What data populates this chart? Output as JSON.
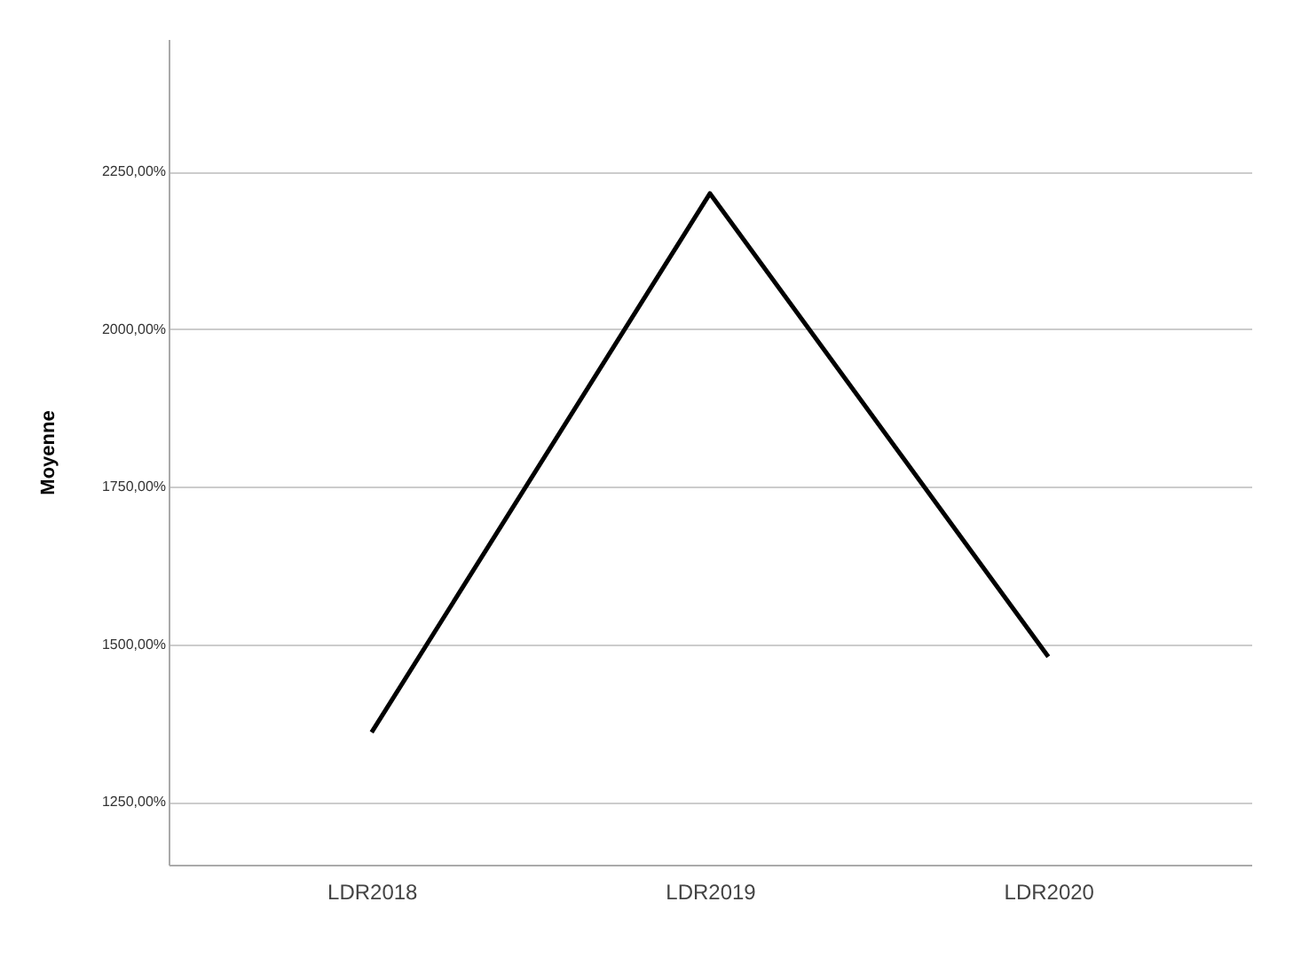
{
  "chart_data": {
    "type": "line",
    "ylabel": "Moyenne",
    "categories": [
      "LDR2018",
      "LDR2019",
      "LDR2020"
    ],
    "series": [
      {
        "color": "#000000",
        "values": [
          1360,
          2215,
          1480
        ]
      }
    ],
    "ylim": [
      1150,
      2460
    ],
    "yticks": [
      {
        "value": 1250,
        "label": "1250,00%"
      },
      {
        "value": 1500,
        "label": "1500,00%"
      },
      {
        "value": 1750,
        "label": "1750,00%"
      },
      {
        "value": 2000,
        "label": "2000,00%"
      },
      {
        "value": 2250,
        "label": "2250,00%"
      }
    ],
    "grid": "y",
    "marker": "none",
    "line_style": "solid"
  }
}
